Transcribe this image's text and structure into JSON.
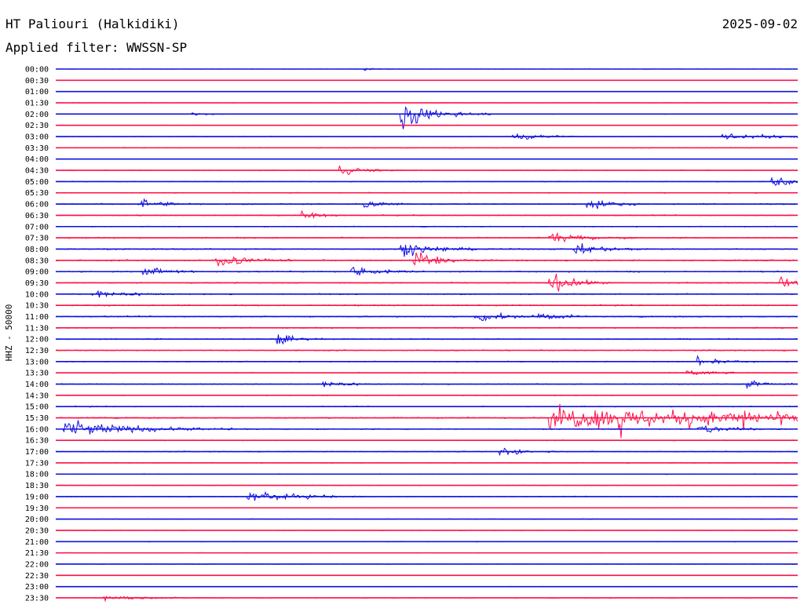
{
  "header": {
    "title": "HT Paliouri (Halkidiki)",
    "date": "2025-09-02",
    "filter": "Applied filter: WWSSN-SP"
  },
  "chart_data": {
    "type": "line",
    "title": "HT Paliouri (Halkidiki)",
    "ylabel": "HHZ - 50000",
    "colors": [
      "#1010e0",
      "#ff1048"
    ],
    "rows": [
      "00:00",
      "00:30",
      "01:00",
      "01:30",
      "02:00",
      "02:30",
      "03:00",
      "03:30",
      "04:00",
      "04:30",
      "05:00",
      "05:30",
      "06:00",
      "06:30",
      "07:00",
      "07:30",
      "08:00",
      "08:30",
      "09:00",
      "09:30",
      "10:00",
      "10:30",
      "11:00",
      "11:30",
      "12:00",
      "12:30",
      "13:00",
      "13:30",
      "14:00",
      "14:30",
      "15:00",
      "15:30",
      "16:00",
      "16:30",
      "17:00",
      "17:30",
      "18:00",
      "18:30",
      "19:00",
      "19:30",
      "20:00",
      "20:30",
      "21:00",
      "21:30",
      "22:00",
      "22:30",
      "23:00",
      "23:30"
    ],
    "noise_level": [
      0.25,
      0.3,
      0.2,
      0.25,
      0.4,
      0.35,
      0.45,
      0.55,
      0.35,
      0.55,
      0.6,
      0.7,
      0.9,
      0.8,
      0.7,
      0.9,
      1.0,
      1.0,
      1.0,
      0.9,
      0.9,
      0.9,
      1.0,
      0.8,
      0.8,
      0.8,
      0.7,
      0.6,
      0.7,
      0.5,
      0.7,
      1.0,
      0.8,
      0.6,
      0.7,
      0.6,
      0.5,
      0.5,
      0.6,
      0.4,
      0.5,
      0.5,
      0.45,
      0.4,
      0.3,
      0.3,
      0.25,
      0.35
    ],
    "events": [
      {
        "row": 0,
        "minute": 12.5,
        "amp": 3,
        "dur": 0.3
      },
      {
        "row": 4,
        "minute": 5.5,
        "amp": 4,
        "dur": 0.5
      },
      {
        "row": 4,
        "minute": 14.0,
        "amp": 26,
        "dur": 1.2
      },
      {
        "row": 6,
        "minute": 18.5,
        "amp": 8,
        "dur": 1.0
      },
      {
        "row": 6,
        "minute": 27.0,
        "amp": 6,
        "dur": 2.5
      },
      {
        "row": 9,
        "minute": 11.5,
        "amp": 10,
        "dur": 0.8
      },
      {
        "row": 10,
        "minute": 29.0,
        "amp": 12,
        "dur": 1.0
      },
      {
        "row": 12,
        "minute": 3.5,
        "amp": 10,
        "dur": 0.8
      },
      {
        "row": 12,
        "minute": 12.5,
        "amp": 10,
        "dur": 0.6
      },
      {
        "row": 12,
        "minute": 21.5,
        "amp": 10,
        "dur": 0.8
      },
      {
        "row": 13,
        "minute": 10.0,
        "amp": 9,
        "dur": 0.6
      },
      {
        "row": 15,
        "minute": 20.0,
        "amp": 8,
        "dur": 1.2
      },
      {
        "row": 16,
        "minute": 14.0,
        "amp": 12,
        "dur": 1.2
      },
      {
        "row": 16,
        "minute": 21.0,
        "amp": 10,
        "dur": 1.0
      },
      {
        "row": 17,
        "minute": 6.5,
        "amp": 14,
        "dur": 1.0
      },
      {
        "row": 17,
        "minute": 14.5,
        "amp": 22,
        "dur": 0.8
      },
      {
        "row": 18,
        "minute": 3.5,
        "amp": 9,
        "dur": 1.0
      },
      {
        "row": 18,
        "minute": 12.0,
        "amp": 10,
        "dur": 1.0
      },
      {
        "row": 19,
        "minute": 20.0,
        "amp": 20,
        "dur": 0.8
      },
      {
        "row": 19,
        "minute": 29.3,
        "amp": 10,
        "dur": 0.6
      },
      {
        "row": 20,
        "minute": 1.5,
        "amp": 8,
        "dur": 1.2
      },
      {
        "row": 22,
        "minute": 17.0,
        "amp": 10,
        "dur": 1.0
      },
      {
        "row": 22,
        "minute": 19.5,
        "amp": 8,
        "dur": 0.8
      },
      {
        "row": 24,
        "minute": 9.0,
        "amp": 14,
        "dur": 0.6
      },
      {
        "row": 26,
        "minute": 26.0,
        "amp": 9,
        "dur": 0.8
      },
      {
        "row": 27,
        "minute": 25.5,
        "amp": 8,
        "dur": 0.8
      },
      {
        "row": 28,
        "minute": 10.8,
        "amp": 8,
        "dur": 0.8
      },
      {
        "row": 28,
        "minute": 28.0,
        "amp": 6,
        "dur": 0.8
      },
      {
        "row": 31,
        "minute": 20.0,
        "amp": 20,
        "dur": 10.5
      },
      {
        "row": 32,
        "minute": 0.3,
        "amp": 16,
        "dur": 2.5
      },
      {
        "row": 32,
        "minute": 26.0,
        "amp": 8,
        "dur": 1.5
      },
      {
        "row": 34,
        "minute": 18.0,
        "amp": 8,
        "dur": 0.8
      },
      {
        "row": 38,
        "minute": 7.8,
        "amp": 12,
        "dur": 1.6
      },
      {
        "row": 47,
        "minute": 2.0,
        "amp": 5,
        "dur": 1.5
      }
    ],
    "spikes": [
      {
        "row": 31,
        "minute": 22.8,
        "amp": 48
      },
      {
        "row": 31,
        "minute": 24.0,
        "amp": 34
      },
      {
        "row": 31,
        "minute": 25.6,
        "amp": 30
      },
      {
        "row": 31,
        "minute": 27.8,
        "amp": 22
      },
      {
        "row": 31,
        "minute": 29.3,
        "amp": 18
      }
    ]
  }
}
